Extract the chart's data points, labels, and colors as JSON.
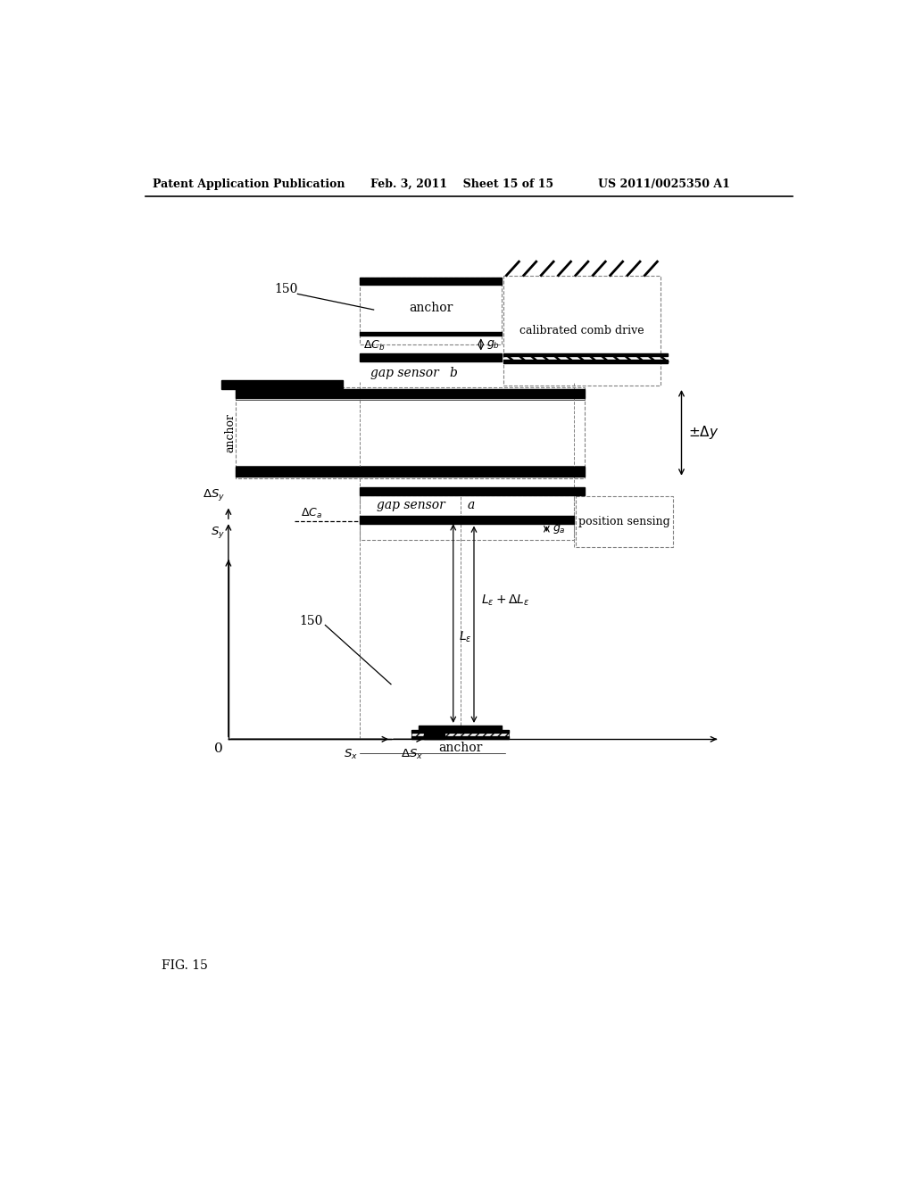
{
  "header_left": "Patent Application Publication",
  "header_mid": "Feb. 3, 2011    Sheet 15 of 15",
  "header_right": "US 2011/0025350 A1",
  "fig_label": "FIG. 15",
  "background_color": "#ffffff"
}
